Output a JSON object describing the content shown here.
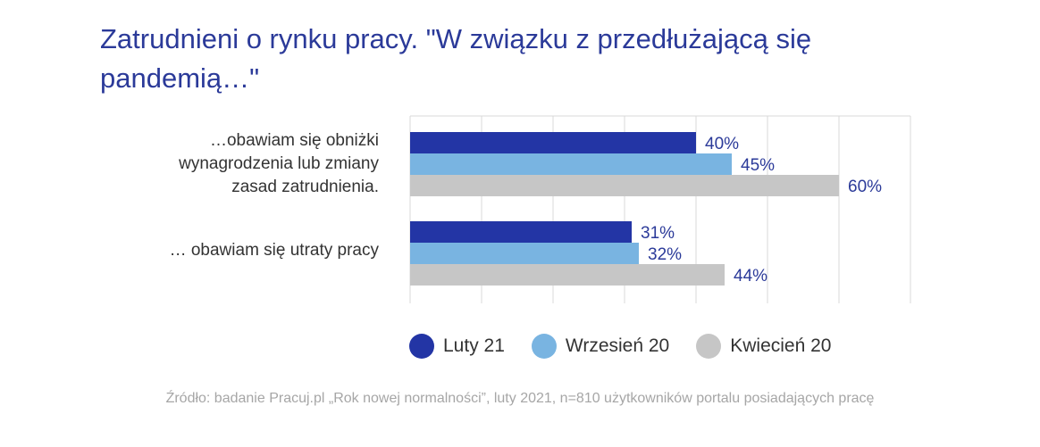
{
  "title_lines": [
    "Zatrudnieni o rynku pracy. \"W związku z przedłużającą się",
    "pandemią…\""
  ],
  "source": "Źródło: badanie Pracuj.pl „Rok nowej normalności”, luty 2021, n=810 użytkowników portalu posiadających pracę",
  "chart_data": {
    "type": "bar",
    "orientation": "horizontal",
    "title": "Zatrudnieni o rynku pracy. \"W związku z przedłużającą się pandemią…\"",
    "categories": [
      "…obawiam się obniżki\nwynagrodzenia lub zmiany\nzasad zatrudnienia.",
      "… obawiam się utraty pracy"
    ],
    "series": [
      {
        "name": "Luty 21",
        "color": "#2335a5",
        "values": [
          40,
          31
        ]
      },
      {
        "name": "Wrzesień 20",
        "color": "#79b4e1",
        "values": [
          45,
          32
        ]
      },
      {
        "name": "Kwiecień 20",
        "color": "#c6c6c6",
        "values": [
          60,
          44
        ]
      }
    ],
    "value_suffix": "%",
    "xlim": [
      0,
      70
    ],
    "grid": true,
    "legend_position": "bottom"
  }
}
